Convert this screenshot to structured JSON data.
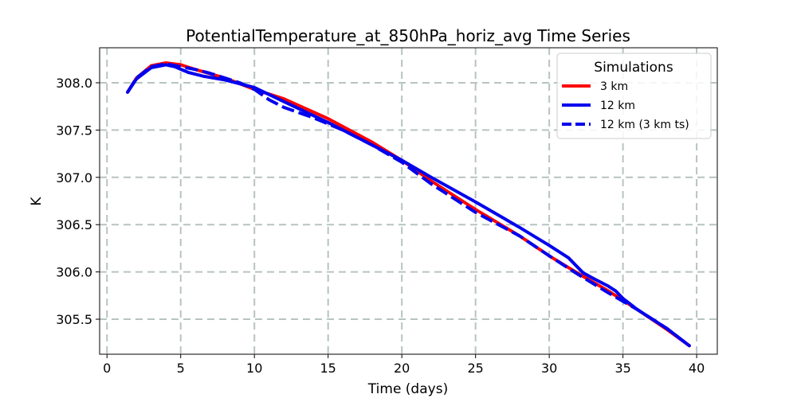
{
  "chart_data": {
    "type": "line",
    "title": "PotentialTemperature_at_850hPa_horiz_avg Time Series",
    "xlabel": "Time (days)",
    "ylabel": "K",
    "xlim": [
      -0.5,
      41.4
    ],
    "ylim": [
      305.13,
      308.37
    ],
    "xticks": [
      0,
      5,
      10,
      15,
      20,
      25,
      30,
      35,
      40
    ],
    "yticks": [
      305.5,
      306.0,
      306.5,
      307.0,
      307.5,
      308.0
    ],
    "ytick_labels": [
      "305.5",
      "306.0",
      "306.5",
      "307.0",
      "307.5",
      "308.0"
    ],
    "grid": true,
    "legend": {
      "title": "Simulations",
      "position": "top-right"
    },
    "series": [
      {
        "name": "3 km",
        "color": "#ff0000",
        "style": "solid",
        "x": [
          1.4,
          2,
          3,
          4,
          5,
          6,
          8,
          10,
          12,
          15,
          18,
          20,
          22,
          25,
          28,
          30,
          32,
          34,
          36,
          38,
          39.5
        ],
        "y": [
          307.9,
          308.05,
          308.18,
          308.21,
          308.19,
          308.14,
          308.05,
          307.93,
          307.83,
          307.62,
          307.37,
          307.18,
          306.96,
          306.66,
          306.38,
          306.17,
          305.98,
          305.8,
          305.6,
          305.39,
          305.22
        ]
      },
      {
        "name": "12 km",
        "color": "#0000ee",
        "style": "solid",
        "x": [
          1.4,
          2,
          3,
          4,
          4.6,
          5.5,
          6.5,
          8,
          10,
          12,
          15,
          18,
          20,
          22,
          25,
          28,
          30,
          31.3,
          31.8,
          32.3,
          33,
          34,
          34.5,
          35,
          36,
          37,
          38,
          39.5
        ],
        "y": [
          307.9,
          308.04,
          308.16,
          308.19,
          308.17,
          308.11,
          308.07,
          308.03,
          307.95,
          307.8,
          307.58,
          307.34,
          307.18,
          307.0,
          306.74,
          306.47,
          306.28,
          306.15,
          306.07,
          305.99,
          305.93,
          305.85,
          305.8,
          305.72,
          305.6,
          305.5,
          305.4,
          305.22
        ]
      },
      {
        "name": "12 km (3 km ts)",
        "color": "#0000ee",
        "style": "dashed",
        "x": [
          1.4,
          2,
          3,
          4,
          5,
          6,
          7,
          8,
          9,
          10,
          11,
          12,
          14,
          16,
          18,
          20,
          22,
          25,
          28,
          30,
          32,
          34,
          36,
          38,
          39.5
        ],
        "y": [
          307.9,
          308.05,
          308.17,
          308.2,
          308.17,
          308.14,
          308.1,
          308.05,
          308.0,
          307.93,
          307.82,
          307.74,
          307.63,
          307.5,
          307.34,
          307.16,
          306.93,
          306.63,
          306.38,
          306.17,
          305.97,
          305.78,
          305.6,
          305.4,
          305.22
        ]
      }
    ]
  }
}
